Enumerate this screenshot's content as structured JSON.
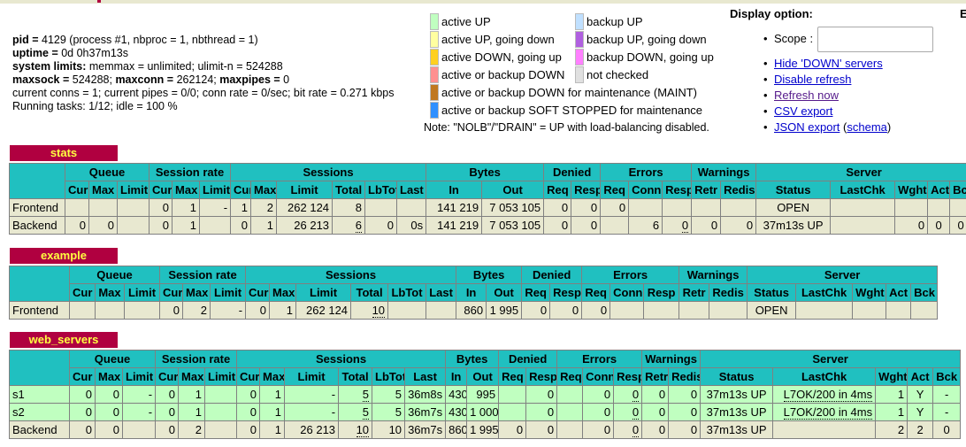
{
  "info": {
    "pid_label": "pid = ",
    "pid_value": "4129 (process #1, nbproc = 1, nbthread = 1)",
    "uptime_label": "uptime = ",
    "uptime_value": "0d 0h37m13s",
    "limits_label": "system limits:",
    "limits_value": " memmax = unlimited; ulimit-n = 524288",
    "maxsock_label": "maxsock = ",
    "maxsock_value": "524288; ",
    "maxconn_label": "maxconn = ",
    "maxconn_value": "262124; ",
    "maxpipes_label": "maxpipes = ",
    "maxpipes_value": "0",
    "current": "current conns = 1; current pipes = 0/0; conn rate = 0/sec; bit rate = 0.271 kbps",
    "tasks": "Running tasks: 1/12; idle = 100 %"
  },
  "legend": {
    "left": [
      {
        "label": "active UP",
        "color": "#c0ffc0"
      },
      {
        "label": "active UP, going down",
        "color": "#ffffa0"
      },
      {
        "label": "active DOWN, going up",
        "color": "#ffd020"
      },
      {
        "label": "active or backup DOWN",
        "color": "#ff9090"
      },
      {
        "label": "active or backup DOWN for maintenance (MAINT)",
        "color": "#c07820"
      },
      {
        "label": "active or backup SOFT STOPPED for maintenance",
        "color": "#3090ff"
      }
    ],
    "right": [
      {
        "label": "backup UP",
        "color": "#c0e0ff"
      },
      {
        "label": "backup UP, going down",
        "color": "#b060e0"
      },
      {
        "label": "backup DOWN, going up",
        "color": "#ff80ff"
      },
      {
        "label": "not checked",
        "color": "#e0e0e0"
      }
    ],
    "note": "Note: \"NOLB\"/\"DRAIN\" = UP with load-balancing disabled."
  },
  "display": {
    "title": "Display option:",
    "scope_label": "Scope :",
    "links": [
      "Hide 'DOWN' servers",
      "Disable refresh",
      "Refresh now",
      "CSV export",
      "JSON export"
    ],
    "schema_open": "(",
    "schema_link": "schema",
    "schema_close": ")",
    "cut_letter": "E"
  },
  "headers": {
    "groups": [
      "Queue",
      "Session rate",
      "Sessions",
      "Bytes",
      "Denied",
      "Errors",
      "Warnings",
      "Server"
    ],
    "cur": "Cur",
    "max": "Max",
    "limit": "Limit",
    "total": "Total",
    "lbtot": "LbTot",
    "last": "Last",
    "in": "In",
    "out": "Out",
    "req": "Req",
    "resp": "Resp",
    "conn": "Conn",
    "retr": "Retr",
    "redis": "Redis",
    "status": "Status",
    "lastchk": "LastChk",
    "wght": "Wght",
    "act": "Act",
    "bck": "Bck"
  },
  "proxies": {
    "stats": {
      "name": "stats",
      "frontend": [
        "Frontend",
        "",
        "",
        "",
        "0",
        "1",
        "-",
        "1",
        "2",
        "262 124",
        "8",
        "",
        "",
        "141 219",
        "7 053 105",
        "0",
        "0",
        "0",
        "",
        "",
        "",
        "",
        "OPEN",
        "",
        "",
        "",
        ""
      ],
      "backend": [
        "Backend",
        "0",
        "0",
        "",
        "0",
        "1",
        "",
        "0",
        "1",
        "26 213",
        "6",
        "0",
        "0s",
        "141 219",
        "7 053 105",
        "0",
        "0",
        "",
        "6",
        "0",
        "0",
        "0",
        "37m13s UP",
        "",
        "0",
        "0",
        "0"
      ]
    },
    "example": {
      "name": "example",
      "frontend": [
        "Frontend",
        "",
        "",
        "",
        "0",
        "2",
        "-",
        "0",
        "1",
        "262 124",
        "10",
        "",
        "",
        "860",
        "1 995",
        "0",
        "0",
        "0",
        "",
        "",
        "",
        "",
        "OPEN",
        "",
        "",
        "",
        ""
      ]
    },
    "web_servers": {
      "name": "web_servers",
      "servers": [
        [
          "s1",
          "0",
          "0",
          "-",
          "0",
          "1",
          "",
          "0",
          "1",
          "-",
          "5",
          "5",
          "36m8s",
          "430",
          "995",
          "",
          "0",
          "",
          "0",
          "0",
          "0",
          "0",
          "37m13s UP",
          "L7OK/200 in 4ms",
          "1",
          "Y",
          "-"
        ],
        [
          "s2",
          "0",
          "0",
          "-",
          "0",
          "1",
          "",
          "0",
          "1",
          "-",
          "5",
          "5",
          "36m7s",
          "430",
          "1 000",
          "",
          "0",
          "",
          "0",
          "0",
          "0",
          "0",
          "37m13s UP",
          "L7OK/200 in 4ms",
          "1",
          "Y",
          "-"
        ]
      ],
      "backend": [
        "Backend",
        "0",
        "0",
        "",
        "0",
        "2",
        "",
        "0",
        "1",
        "26 213",
        "10",
        "10",
        "36m7s",
        "860",
        "1 995",
        "0",
        "0",
        "",
        "0",
        "0",
        "0",
        "0",
        "37m13s UP",
        "",
        "2",
        "2",
        "0"
      ]
    }
  }
}
